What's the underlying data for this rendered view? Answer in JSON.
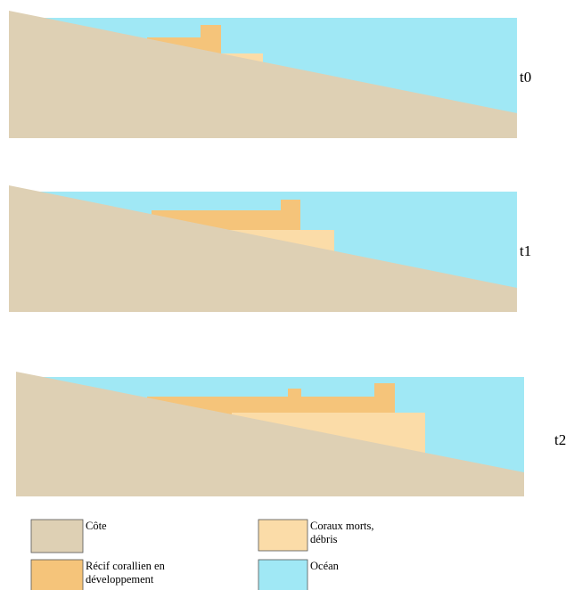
{
  "panels": [
    {
      "label": "t0"
    },
    {
      "label": "t1"
    },
    {
      "label": "t2"
    }
  ],
  "legend": [
    {
      "lines": [
        "Côte"
      ]
    },
    {
      "lines": [
        "Récif corallien en",
        "développement"
      ]
    },
    {
      "lines": [
        "Coraux morts,",
        "débris"
      ]
    },
    {
      "lines": [
        "Océan"
      ]
    }
  ]
}
